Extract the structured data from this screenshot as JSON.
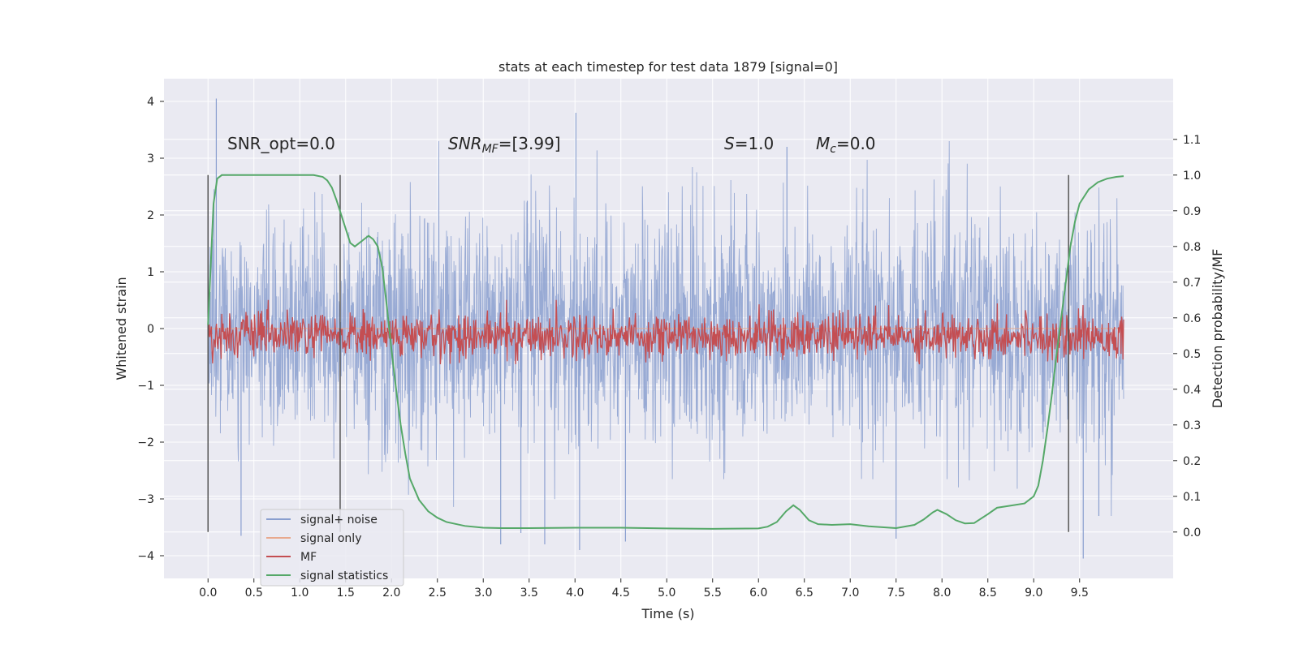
{
  "chart_data": {
    "type": "line",
    "title": "stats at each timestep for test data 1879 [signal=0]",
    "xlabel": "Time (s)",
    "ylabel_left": "Whitened strain",
    "ylabel_right": "Detection probability/MF",
    "xlim": [
      -0.48,
      10.52
    ],
    "ylim_left": [
      -4.4,
      4.4
    ],
    "ylim_right": [
      -0.13,
      1.27
    ],
    "x_ticks": [
      "0.0",
      "0.5",
      "1.0",
      "1.5",
      "2.0",
      "2.5",
      "3.0",
      "3.5",
      "4.0",
      "4.5",
      "5.0",
      "5.5",
      "6.0",
      "6.5",
      "7.0",
      "7.5",
      "8.0",
      "8.5",
      "9.0",
      "9.5"
    ],
    "y_ticks_left": [
      "−4",
      "−3",
      "−2",
      "−1",
      "0",
      "1",
      "2",
      "3",
      "4"
    ],
    "y_ticks_right": [
      "0.0",
      "0.1",
      "0.2",
      "0.3",
      "0.4",
      "0.5",
      "0.6",
      "0.7",
      "0.8",
      "0.9",
      "1.0",
      "1.1"
    ],
    "grid": true,
    "legend_position": "lower-left",
    "annotations": {
      "snr_opt": "SNR_opt=0.0",
      "snr_mf_main": "SNR",
      "snr_mf_sub": "MF",
      "snr_mf_rest": "=[3.99]",
      "s_main": "S",
      "s_rest": "=1.0",
      "mc_main": "M",
      "mc_sub": "c",
      "mc_rest": "=0.0"
    },
    "vertical_markers_x": [
      0.0,
      1.44,
      9.38
    ],
    "series": [
      {
        "name": "signal+ noise",
        "color": "#8a9fcf",
        "style": "noise",
        "amplitude_sigma": 1.0,
        "envelope": [
          2.4,
          -2.4
        ],
        "peak_points": [
          [
            0.09,
            4.05
          ],
          [
            3.48,
            2.25
          ],
          [
            4.01,
            3.8
          ],
          [
            4.05,
            -3.9
          ],
          [
            6.31,
            3.2
          ],
          [
            9.54,
            -4.05
          ],
          [
            0.36,
            -3.65
          ],
          [
            3.19,
            -3.8
          ],
          [
            3.41,
            -3.6
          ],
          [
            3.67,
            -3.8
          ],
          [
            4.55,
            -3.75
          ],
          [
            7.5,
            -3.7
          ],
          [
            9.71,
            -3.3
          ]
        ]
      },
      {
        "name": "signal only",
        "color": "#e8a98e",
        "style": "flat",
        "values_y": 0.0
      },
      {
        "name": "MF",
        "color": "#c44e52",
        "style": "noise-right-axis",
        "mean": 0.55,
        "spread": 0.07,
        "range": [
          0.47,
          0.65
        ]
      },
      {
        "name": "signal statistics",
        "color": "#55a868",
        "style": "line-right-axis",
        "x": [
          0.0,
          0.03,
          0.06,
          0.1,
          0.15,
          0.2,
          0.3,
          0.5,
          0.8,
          1.0,
          1.15,
          1.25,
          1.3,
          1.35,
          1.4,
          1.45,
          1.5,
          1.55,
          1.6,
          1.65,
          1.7,
          1.75,
          1.8,
          1.85,
          1.9,
          1.95,
          2.0,
          2.05,
          2.1,
          2.15,
          2.2,
          2.3,
          2.4,
          2.5,
          2.6,
          2.8,
          3.0,
          3.2,
          3.5,
          4.0,
          4.5,
          5.0,
          5.5,
          6.0,
          6.1,
          6.2,
          6.3,
          6.38,
          6.45,
          6.55,
          6.65,
          6.8,
          7.0,
          7.2,
          7.5,
          7.7,
          7.8,
          7.9,
          7.95,
          8.05,
          8.15,
          8.25,
          8.35,
          8.5,
          8.6,
          8.7,
          8.9,
          9.0,
          9.05,
          9.1,
          9.15,
          9.2,
          9.25,
          9.3,
          9.35,
          9.4,
          9.45,
          9.5,
          9.6,
          9.7,
          9.8,
          9.9,
          9.98
        ],
        "values": [
          0.58,
          0.75,
          0.92,
          0.99,
          1.0,
          1.0,
          1.0,
          1.0,
          1.0,
          1.0,
          1.0,
          0.995,
          0.985,
          0.965,
          0.93,
          0.89,
          0.85,
          0.81,
          0.8,
          0.81,
          0.82,
          0.83,
          0.82,
          0.8,
          0.74,
          0.63,
          0.51,
          0.4,
          0.3,
          0.22,
          0.15,
          0.09,
          0.058,
          0.04,
          0.028,
          0.017,
          0.012,
          0.011,
          0.011,
          0.012,
          0.012,
          0.01,
          0.009,
          0.01,
          0.015,
          0.028,
          0.058,
          0.075,
          0.062,
          0.033,
          0.022,
          0.02,
          0.022,
          0.016,
          0.011,
          0.02,
          0.035,
          0.055,
          0.062,
          0.05,
          0.033,
          0.024,
          0.025,
          0.05,
          0.068,
          0.072,
          0.08,
          0.1,
          0.13,
          0.2,
          0.29,
          0.39,
          0.5,
          0.6,
          0.7,
          0.8,
          0.87,
          0.92,
          0.96,
          0.98,
          0.99,
          0.995,
          0.997
        ]
      }
    ]
  }
}
